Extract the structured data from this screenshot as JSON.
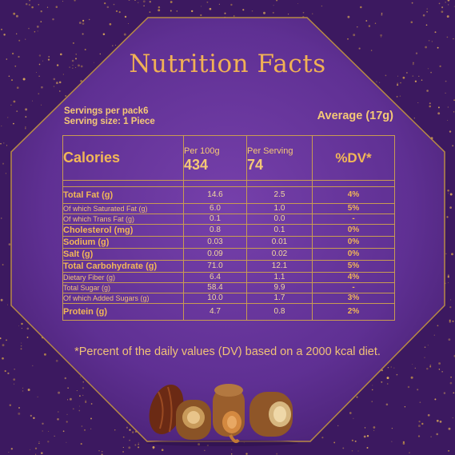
{
  "title": "Nutrition Facts",
  "servings_per_pack": "Servings per pack6",
  "serving_size": "Serving size: 1 Piece",
  "average": "Average (17g)",
  "calories": {
    "label": "Calories",
    "per100_label": "Per 100g",
    "per100_value": "434",
    "perserving_label": "Per Serving",
    "perserving_value": "74",
    "dv_label": "%DV*"
  },
  "rows": [
    {
      "name": "Total Fat (g)",
      "per100": "14.6",
      "serving": "2.5",
      "dv": "4%"
    },
    {
      "name": "Of which Saturated Fat (g)",
      "per100": "6.0",
      "serving": "1.0",
      "dv": "5%"
    },
    {
      "name": "Of which Trans Fat (g)",
      "per100": "0.1",
      "serving": "0.0",
      "dv": "-"
    },
    {
      "name": "Cholesterol (mg)",
      "per100": "0.8",
      "serving": "0.1",
      "dv": "0%"
    },
    {
      "name": "Sodium (g)",
      "per100": "0.03",
      "serving": "0.01",
      "dv": "0%"
    },
    {
      "name": "Salt (g)",
      "per100": "0.09",
      "serving": "0.02",
      "dv": "0%"
    },
    {
      "name": "Total Carbohydrate (g)",
      "per100": "71.0",
      "serving": "12.1",
      "dv": "5%"
    },
    {
      "name": "Dietary Fiber (g)",
      "per100": "6.4",
      "serving": "1.1",
      "dv": "4%"
    },
    {
      "name": "Total Sugar (g)",
      "per100": "58.4",
      "serving": "9.9",
      "dv": "-"
    },
    {
      "name": "Of which Added Sugars (g)",
      "per100": "10.0",
      "serving": "1.7",
      "dv": "3%"
    },
    {
      "name": "Protein (g)",
      "per100": "4.7",
      "serving": "0.8",
      "dv": "2%"
    }
  ],
  "footnote": "*Percent of the daily values (DV) based on a 2000 kcal diet.",
  "colors": {
    "background": "#3e1a62",
    "octagon": "#6a3aa0",
    "gold": "#f2b757",
    "table_border": "#c99b52"
  }
}
